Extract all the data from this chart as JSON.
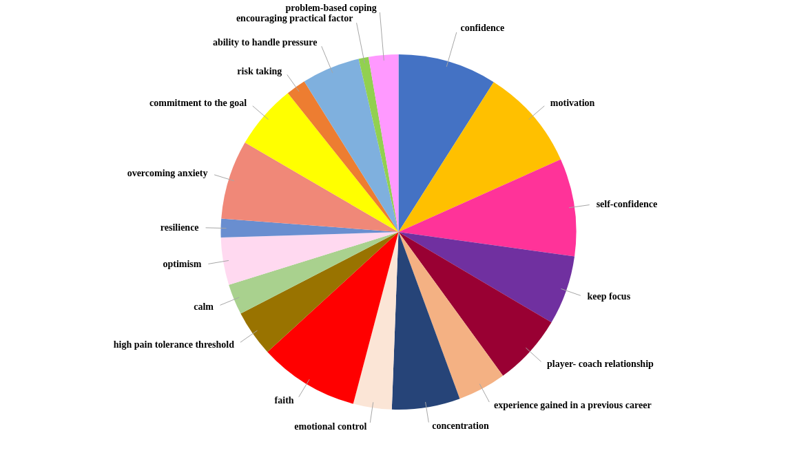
{
  "chart_data": {
    "type": "pie",
    "categories": [
      "confidence",
      "motivation",
      "self-confidence",
      "keep focus",
      "player- coach relationship",
      "experience gained in a previous career",
      "concentration",
      "emotional control",
      "faith",
      "high pain tolerance threshold",
      "calm",
      "optimism",
      "resilience",
      "overcoming anxiety",
      "commitment to the goal",
      "risk taking",
      "ability to handle pressure",
      "encouraging practical factor",
      "problem-based coping"
    ],
    "values": [
      9.0,
      9.3,
      8.9,
      6.3,
      6.5,
      4.4,
      6.2,
      3.5,
      9.1,
      4.2,
      2.8,
      4.3,
      1.7,
      7.2,
      5.9,
      1.8,
      5.3,
      0.9,
      2.7
    ],
    "colors": [
      "#4472c4",
      "#ffc000",
      "#ff3399",
      "#7030a0",
      "#990033",
      "#f4b183",
      "#264478",
      "#fbe5d6",
      "#ff0000",
      "#997300",
      "#a9d18e",
      "#ffd9f0",
      "#698ed0",
      "#f08878",
      "#ffff00",
      "#ed7d31",
      "#7fb0de",
      "#92d050",
      "#ff99ff"
    ]
  }
}
